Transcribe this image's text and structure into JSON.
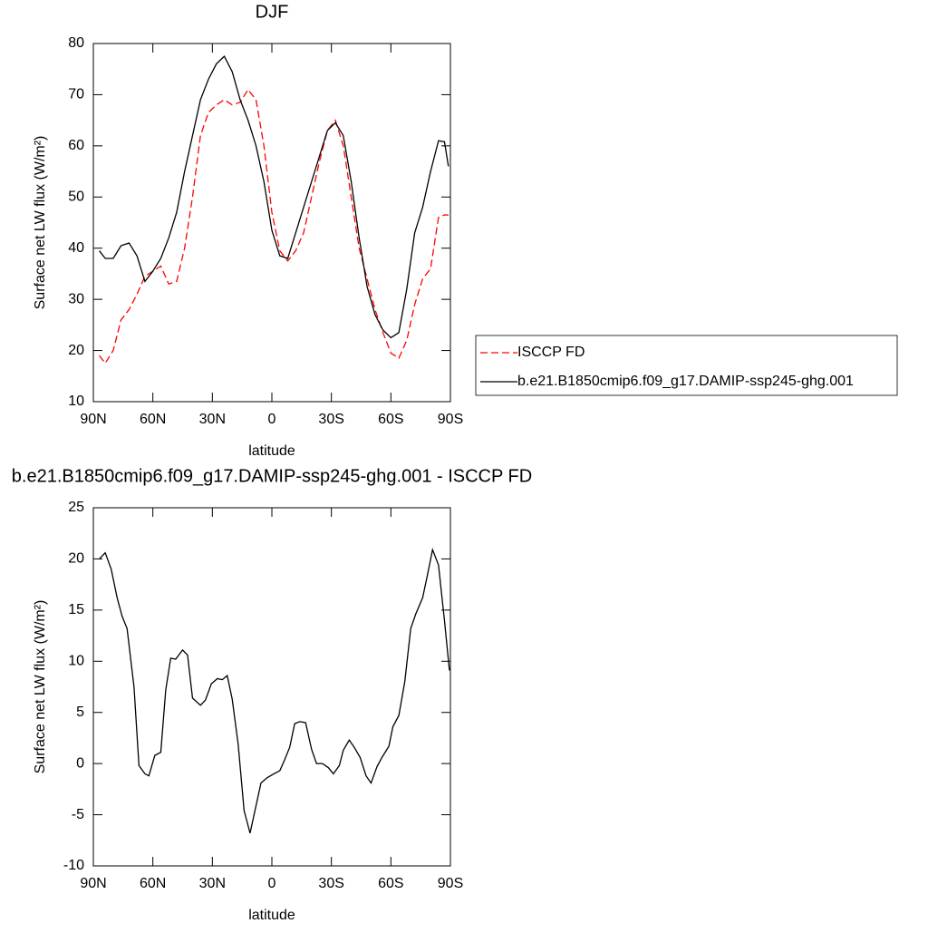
{
  "chart_data": [
    {
      "type": "line",
      "title": "DJF",
      "xlabel": "latitude",
      "ylabel": "Surface net LW flux (W/m²)",
      "xlim": [
        90,
        -90
      ],
      "xticks": [
        {
          "value": 90,
          "label": "90N"
        },
        {
          "value": 60,
          "label": "60N"
        },
        {
          "value": 30,
          "label": "30N"
        },
        0,
        {
          "value": -30,
          "label": "30S"
        },
        {
          "value": -60,
          "label": "60S"
        },
        {
          "value": -90,
          "label": "90S"
        }
      ],
      "ylim": [
        10,
        80
      ],
      "yticks": [
        10,
        20,
        30,
        40,
        50,
        60,
        70,
        80
      ],
      "legend": "right",
      "x": [
        87,
        84,
        80,
        76,
        72,
        68,
        64,
        60,
        56,
        52,
        48,
        44,
        40,
        36,
        32,
        28,
        24,
        20,
        16,
        12,
        8,
        4,
        0,
        -4,
        -8,
        -12,
        -16,
        -20,
        -24,
        -28,
        -32,
        -36,
        -40,
        -44,
        -48,
        -52,
        -56,
        -60,
        -64,
        -68,
        -72,
        -76,
        -80,
        -84,
        -87,
        -89
      ],
      "series": [
        {
          "name": "ISCCP FD",
          "color": "#ff0000",
          "line_style": "dashed",
          "values": [
            19,
            17.5,
            20,
            26,
            28,
            31,
            34.5,
            35.5,
            36.5,
            33,
            33.5,
            40,
            50,
            62,
            66.5,
            68,
            69,
            68,
            68.5,
            71,
            69,
            60,
            47,
            39.5,
            37.5,
            39.5,
            43,
            50,
            57,
            63,
            65,
            60,
            50,
            40,
            34,
            28,
            23.5,
            19.5,
            18.5,
            22,
            29,
            34,
            36,
            46,
            46.5,
            46.5
          ]
        },
        {
          "name": "b.e21.B1850cmip6.f09_g17.DAMIP-ssp245-ghg.001",
          "color": "#000000",
          "line_style": "solid",
          "values": [
            39.5,
            38,
            38,
            40.5,
            41,
            38.5,
            33.5,
            35.5,
            38,
            42,
            47,
            55,
            62,
            69,
            73,
            76,
            77.5,
            74.5,
            69,
            65,
            60,
            53,
            43.5,
            38.5,
            38,
            43,
            48,
            53,
            58,
            63,
            64.5,
            62,
            53,
            42,
            32.5,
            27,
            24,
            22.5,
            23.5,
            32,
            43,
            48,
            55,
            61,
            60.8,
            56
          ]
        }
      ]
    },
    {
      "type": "line",
      "title": "b.e21.B1850cmip6.f09_g17.DAMIP-ssp245-ghg.001 - ISCCP FD",
      "xlabel": "latitude",
      "ylabel": "Surface net LW flux (W/m²)",
      "xlim": [
        90,
        -90
      ],
      "xticks": [
        {
          "value": 90,
          "label": "90N"
        },
        {
          "value": 60,
          "label": "60N"
        },
        {
          "value": 30,
          "label": "30N"
        },
        0,
        {
          "value": -30,
          "label": "30S"
        },
        {
          "value": -60,
          "label": "60S"
        },
        {
          "value": -90,
          "label": "90S"
        }
      ],
      "ylim": [
        -10,
        25
      ],
      "yticks": [
        -10,
        -5,
        0,
        5,
        10,
        15,
        20,
        25
      ],
      "x": [
        87,
        84,
        81,
        78,
        75.5,
        73,
        69.5,
        67,
        64,
        62,
        59,
        56,
        53.5,
        51,
        48.5,
        45,
        42.5,
        40,
        36,
        33.5,
        30.5,
        27.5,
        25,
        22.5,
        20,
        17,
        14,
        11,
        5.5,
        2.5,
        -1,
        -4,
        -6.5,
        -9,
        -11.5,
        -14,
        -17,
        -20,
        -22.5,
        -25.5,
        -28.5,
        -31,
        -34,
        -36,
        -39,
        -41.5,
        -44.5,
        -47.5,
        -50,
        -53,
        -55.5,
        -59,
        -61,
        -64,
        -67,
        -70,
        -72.5,
        -76,
        -78.5,
        -81,
        -84,
        -87,
        -89.5
      ],
      "series": [
        {
          "color": "#000000",
          "line_style": "solid",
          "values": [
            20,
            20.6,
            19,
            16.2,
            14.4,
            13.2,
            7.5,
            -0.2,
            -1,
            -1.2,
            0.8,
            1.1,
            7.2,
            10.3,
            10.2,
            11.1,
            10.6,
            6.4,
            5.7,
            6.2,
            7.8,
            8.3,
            8.2,
            8.6,
            6.3,
            1.9,
            -4.6,
            -6.8,
            -1.9,
            -1.4,
            -1,
            -0.7,
            0.4,
            1.6,
            3.9,
            4.1,
            4,
            1.4,
            0,
            0,
            -0.4,
            -1,
            -0.2,
            1.3,
            2.3,
            1.6,
            0.6,
            -1.2,
            -1.9,
            -0.3,
            0.6,
            1.7,
            3.6,
            4.7,
            8,
            13.2,
            14.6,
            16.2,
            18.5,
            20.9,
            19.4,
            14,
            9.1
          ]
        }
      ]
    }
  ]
}
